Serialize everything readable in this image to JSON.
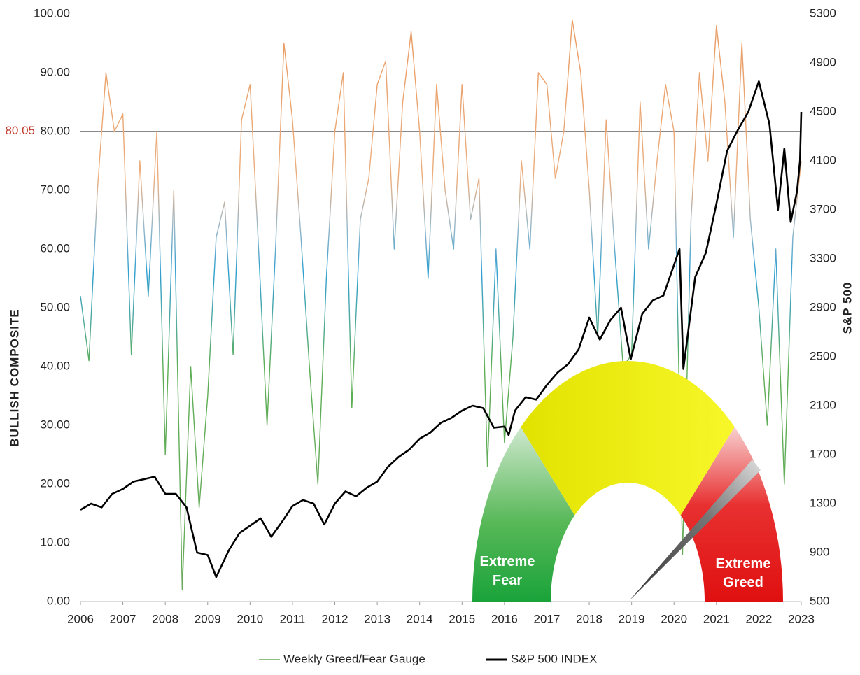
{
  "chart_data": {
    "type": "line",
    "xlim": [
      2006,
      2023
    ],
    "xticks": [
      2006,
      2007,
      2008,
      2009,
      2010,
      2011,
      2012,
      2013,
      2014,
      2015,
      2016,
      2017,
      2018,
      2019,
      2020,
      2021,
      2022,
      2023
    ],
    "ylim": [
      0,
      100
    ],
    "yticks": [
      {
        "value": 0,
        "label": "0.00"
      },
      {
        "value": 10,
        "label": "10.00"
      },
      {
        "value": 20,
        "label": "20.00"
      },
      {
        "value": 30,
        "label": "30.00"
      },
      {
        "value": 40,
        "label": "40.00"
      },
      {
        "value": 50,
        "label": "50.00"
      },
      {
        "value": 60,
        "label": "60.00"
      },
      {
        "value": 70,
        "label": "70.00"
      },
      {
        "value": 80,
        "label": "80.00"
      },
      {
        "value": 90,
        "label": "90.00"
      },
      {
        "value": 100,
        "label": "100.00"
      }
    ],
    "y2lim": [
      500,
      5300
    ],
    "y2ticks": [
      500,
      900,
      1300,
      1700,
      2100,
      2500,
      2900,
      3300,
      3700,
      4100,
      4500,
      4900,
      5300
    ],
    "ylabel": "BULLISH COMPOSITE",
    "y2label": "S&P 500",
    "legend": "bottom",
    "reference_line": {
      "value": 80.05,
      "label": "80.05",
      "color": "#c0392b"
    },
    "annotations": [
      "Extreme Fear",
      "Extreme Greed"
    ],
    "series": [
      {
        "name": "Weekly Greed/Fear Gauge",
        "color": "#6aaa5a",
        "x": [
          2006.0,
          2006.2,
          2006.4,
          2006.6,
          2006.8,
          2007.0,
          2007.2,
          2007.4,
          2007.6,
          2007.8,
          2008.0,
          2008.2,
          2008.4,
          2008.6,
          2008.8,
          2009.0,
          2009.2,
          2009.4,
          2009.6,
          2009.8,
          2010.0,
          2010.2,
          2010.4,
          2010.6,
          2010.8,
          2011.0,
          2011.2,
          2011.4,
          2011.6,
          2011.8,
          2012.0,
          2012.2,
          2012.4,
          2012.6,
          2012.8,
          2013.0,
          2013.2,
          2013.4,
          2013.6,
          2013.8,
          2014.0,
          2014.2,
          2014.4,
          2014.6,
          2014.8,
          2015.0,
          2015.2,
          2015.4,
          2015.6,
          2015.8,
          2016.0,
          2016.2,
          2016.4,
          2016.6,
          2016.8,
          2017.0,
          2017.2,
          2017.4,
          2017.6,
          2017.8,
          2018.0,
          2018.2,
          2018.4,
          2018.6,
          2018.8,
          2019.0,
          2019.2,
          2019.4,
          2019.6,
          2019.8,
          2020.0,
          2020.2,
          2020.4,
          2020.6,
          2020.8,
          2021.0,
          2021.2,
          2021.4,
          2021.6,
          2021.8,
          2022.0,
          2022.2,
          2022.4,
          2022.6,
          2022.8,
          2023.0
        ],
        "values": [
          52,
          41,
          70,
          90,
          80,
          83,
          42,
          75,
          52,
          80,
          25,
          70,
          2,
          40,
          16,
          35,
          62,
          68,
          42,
          82,
          88,
          60,
          30,
          60,
          95,
          82,
          62,
          40,
          20,
          55,
          80,
          90,
          33,
          65,
          72,
          88,
          92,
          60,
          85,
          97,
          80,
          55,
          88,
          70,
          60,
          88,
          65,
          72,
          23,
          60,
          27,
          45,
          75,
          60,
          90,
          88,
          72,
          80,
          99,
          90,
          70,
          45,
          82,
          60,
          40,
          42,
          85,
          60,
          75,
          88,
          80,
          8,
          65,
          90,
          75,
          98,
          85,
          62,
          95,
          65,
          50,
          30,
          60,
          20,
          62,
          75
        ]
      },
      {
        "name": "S&P 500 INDEX",
        "color": "#000000",
        "axis": "y2",
        "x": [
          2006.0,
          2006.25,
          2006.5,
          2006.75,
          2007.0,
          2007.25,
          2007.5,
          2007.75,
          2008.0,
          2008.25,
          2008.5,
          2008.75,
          2009.0,
          2009.2,
          2009.5,
          2009.75,
          2010.0,
          2010.25,
          2010.5,
          2010.75,
          2011.0,
          2011.25,
          2011.5,
          2011.75,
          2012.0,
          2012.25,
          2012.5,
          2012.75,
          2013.0,
          2013.25,
          2013.5,
          2013.75,
          2014.0,
          2014.25,
          2014.5,
          2014.75,
          2015.0,
          2015.25,
          2015.5,
          2015.75,
          2016.0,
          2016.1,
          2016.25,
          2016.5,
          2016.75,
          2017.0,
          2017.25,
          2017.5,
          2017.75,
          2018.0,
          2018.25,
          2018.5,
          2018.75,
          2018.98,
          2019.25,
          2019.5,
          2019.75,
          2020.0,
          2020.13,
          2020.22,
          2020.5,
          2020.75,
          2021.0,
          2021.25,
          2021.5,
          2021.75,
          2022.0,
          2022.25,
          2022.45,
          2022.6,
          2022.75,
          2022.9,
          2022.97,
          2023.0
        ],
        "values": [
          1250,
          1300,
          1270,
          1380,
          1420,
          1480,
          1500,
          1520,
          1380,
          1380,
          1270,
          900,
          880,
          700,
          920,
          1060,
          1120,
          1180,
          1030,
          1150,
          1280,
          1330,
          1300,
          1130,
          1300,
          1400,
          1360,
          1430,
          1480,
          1600,
          1680,
          1740,
          1830,
          1880,
          1960,
          2000,
          2060,
          2100,
          2080,
          1920,
          1930,
          1860,
          2060,
          2170,
          2150,
          2270,
          2370,
          2440,
          2560,
          2820,
          2640,
          2800,
          2900,
          2480,
          2850,
          2960,
          3000,
          3250,
          3380,
          2400,
          3150,
          3350,
          3750,
          4180,
          4350,
          4500,
          4750,
          4400,
          3700,
          4200,
          3600,
          3850,
          4100,
          4500
        ]
      }
    ]
  }
}
